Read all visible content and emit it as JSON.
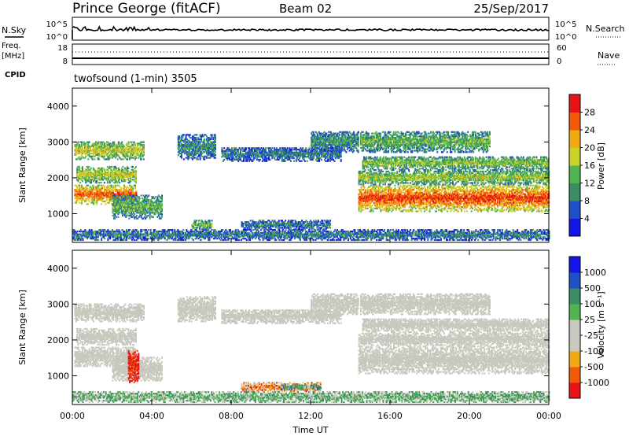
{
  "header": {
    "station": "Prince George (fitACF)",
    "beam": "Beam 02",
    "date": "25/Sep/2017"
  },
  "top_panel": {
    "left_label": "N.Sky",
    "right_label": "N.Search",
    "left_ticks": [
      "10^5",
      "10^0"
    ],
    "right_ticks": [
      "10^5",
      "10^0"
    ]
  },
  "freq_panel": {
    "left_label_1": "Freq.",
    "left_label_2": "[MHz]",
    "left_ticks": [
      "18",
      "8"
    ],
    "right_ticks": [
      "60",
      "0"
    ],
    "right_label": "Nave",
    "cpid_label": "CPID",
    "cpid_value": "twofsound (1-min) 3505"
  },
  "colors": {
    "power_scale": [
      "#1414e6",
      "#1e50c8",
      "#3c8c64",
      "#50b450",
      "#c8d228",
      "#f0aa14",
      "#f05a0a",
      "#e61414"
    ],
    "velocity_scale": [
      "#e61414",
      "#f05a0a",
      "#f0aa14",
      "#c8c8be",
      "#c8c8be",
      "#50b450",
      "#3c8c64",
      "#1e50c8",
      "#1414e6"
    ]
  },
  "chart_data": [
    {
      "type": "heatmap",
      "name": "power",
      "xlabel": "",
      "ylabel": "Slant Range [km]",
      "xlim": [
        0,
        24
      ],
      "ylim": [
        200,
        4500
      ],
      "yticks": [
        "1000",
        "2000",
        "3000",
        "4000"
      ],
      "colorbar": {
        "label": "Power [dB]",
        "ticks": [
          "4",
          "8",
          "12",
          "16",
          "20",
          "24",
          "28"
        ]
      },
      "bands": [
        {
          "t0": 0.1,
          "t1": 3.2,
          "r0": 1250,
          "r1": 1800,
          "level": 0.85
        },
        {
          "t0": 0.2,
          "t1": 3.2,
          "r0": 1850,
          "r1": 2300,
          "level": 0.6
        },
        {
          "t0": 0.1,
          "t1": 3.6,
          "r0": 2500,
          "r1": 3000,
          "level": 0.6
        },
        {
          "t0": 2.0,
          "t1": 4.5,
          "r0": 850,
          "r1": 1500,
          "level": 0.45
        },
        {
          "t0": 5.3,
          "t1": 7.2,
          "r0": 2500,
          "r1": 3200,
          "level": 0.35
        },
        {
          "t0": 7.5,
          "t1": 13.5,
          "r0": 2450,
          "r1": 2850,
          "level": 0.3
        },
        {
          "t0": 12.0,
          "t1": 14.4,
          "r0": 2700,
          "r1": 3300,
          "level": 0.35
        },
        {
          "t0": 14.4,
          "t1": 24.0,
          "r0": 1050,
          "r1": 1800,
          "level": 0.9
        },
        {
          "t0": 14.4,
          "t1": 24.0,
          "r0": 1800,
          "r1": 2200,
          "level": 0.55
        },
        {
          "t0": 14.6,
          "t1": 24.0,
          "r0": 2200,
          "r1": 2600,
          "level": 0.5
        },
        {
          "t0": 14.5,
          "t1": 21.0,
          "r0": 2700,
          "r1": 3300,
          "level": 0.45
        },
        {
          "t0": 0.0,
          "t1": 24.0,
          "r0": 250,
          "r1": 550,
          "level": 0.3
        },
        {
          "t0": 6.0,
          "t1": 7.0,
          "r0": 550,
          "r1": 800,
          "level": 0.5
        },
        {
          "t0": 8.5,
          "t1": 13.0,
          "r0": 550,
          "r1": 800,
          "level": 0.3
        }
      ]
    },
    {
      "type": "heatmap",
      "name": "velocity",
      "xlabel": "Time UT",
      "ylabel": "Slant Range [km]",
      "xlim": [
        0,
        24
      ],
      "ylim": [
        200,
        4500
      ],
      "xticks": [
        "00:00",
        "04:00",
        "08:00",
        "12:00",
        "16:00",
        "20:00",
        "00:00"
      ],
      "yticks": [
        "1000",
        "2000",
        "3000",
        "4000"
      ],
      "colorbar": {
        "label": "Velocity [m s⁻¹]",
        "ticks": [
          "1000",
          "500",
          "100",
          "25",
          "-25",
          "-100",
          "-500",
          "-1000"
        ]
      },
      "bands": [
        {
          "t0": 0.1,
          "t1": 3.2,
          "r0": 1250,
          "r1": 1800,
          "level": 0.45
        },
        {
          "t0": 0.2,
          "t1": 3.2,
          "r0": 1850,
          "r1": 2300,
          "level": 0.45
        },
        {
          "t0": 0.1,
          "t1": 3.6,
          "r0": 2500,
          "r1": 3000,
          "level": 0.45
        },
        {
          "t0": 2.0,
          "t1": 4.5,
          "r0": 850,
          "r1": 1500,
          "level": 0.45
        },
        {
          "t0": 2.8,
          "t1": 3.3,
          "r0": 800,
          "r1": 1700,
          "level": 0.05
        },
        {
          "t0": 5.3,
          "t1": 7.2,
          "r0": 2500,
          "r1": 3200,
          "level": 0.45
        },
        {
          "t0": 7.5,
          "t1": 13.5,
          "r0": 2450,
          "r1": 2850,
          "level": 0.45
        },
        {
          "t0": 12.0,
          "t1": 14.4,
          "r0": 2700,
          "r1": 3300,
          "level": 0.45
        },
        {
          "t0": 14.4,
          "t1": 24.0,
          "r0": 1050,
          "r1": 1800,
          "level": 0.45
        },
        {
          "t0": 14.4,
          "t1": 24.0,
          "r0": 1800,
          "r1": 2200,
          "level": 0.45
        },
        {
          "t0": 14.6,
          "t1": 24.0,
          "r0": 2200,
          "r1": 2600,
          "level": 0.45
        },
        {
          "t0": 14.5,
          "t1": 21.0,
          "r0": 2700,
          "r1": 3300,
          "level": 0.45
        },
        {
          "t0": 8.5,
          "t1": 12.5,
          "r0": 550,
          "r1": 800,
          "level": 0.25
        },
        {
          "t0": 10.5,
          "t1": 12.5,
          "r0": 600,
          "r1": 750,
          "level": 0.65
        },
        {
          "t0": 0.0,
          "t1": 24.0,
          "r0": 250,
          "r1": 550,
          "level": 0.6
        }
      ]
    }
  ]
}
